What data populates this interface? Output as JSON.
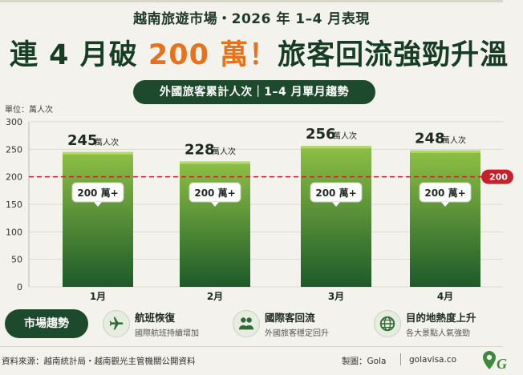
{
  "header": {
    "subtitle": "越南旅遊市場・2026 年 1–4 月表現",
    "headline_pre": "連 4 月破 ",
    "headline_highlight": "200 萬！",
    "headline_post": "旅客回流強勁升溫"
  },
  "pill_title": "外國旅客累計人次｜1–4 月單月趨勢",
  "unit_label": "單位：萬人次",
  "chart_data": {
    "type": "bar",
    "categories": [
      "1月",
      "2月",
      "3月",
      "4月"
    ],
    "values": [
      245,
      228,
      256,
      248
    ],
    "value_suffix": "萬人次",
    "badge_text": "200 萬+",
    "ylim": [
      0,
      300
    ],
    "yticks": [
      0,
      50,
      100,
      150,
      200,
      250,
      300
    ],
    "reference_line": {
      "value": 200,
      "label": "200"
    },
    "grid": true,
    "colors": {
      "bar_top": "#8ec044",
      "bar_bottom": "#1d5a2a",
      "reference": "#c8202b"
    }
  },
  "trends": {
    "title": "市場趨勢",
    "items": [
      {
        "icon": "airplane-icon",
        "name": "航班恢復",
        "desc": "國際航班持續增加"
      },
      {
        "icon": "people-icon",
        "name": "國際客回流",
        "desc": "外國旅客穩定回升"
      },
      {
        "icon": "globe-icon",
        "name": "目的地熱度上升",
        "desc": "各大景點人氣強勁"
      }
    ]
  },
  "footer": {
    "source": "資料來源：越南統計局・越南觀光主管機關公開資料",
    "credit": "製圖：Gola",
    "site": "golavisa.co",
    "brand_letter": "G"
  }
}
